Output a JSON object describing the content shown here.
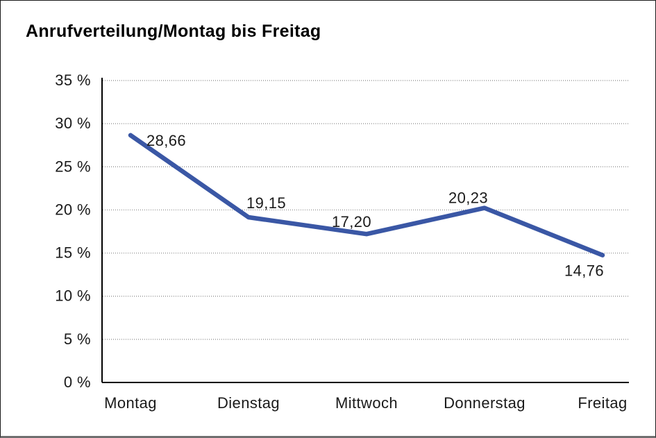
{
  "window": {
    "title": "Anrufverteilung/Montag bis Freitag"
  },
  "chart_data": {
    "type": "line",
    "title": "Anrufverteilung/Montag bis Freitag",
    "categories": [
      "Montag",
      "Dienstag",
      "Mittwoch",
      "Donnerstag",
      "Freitag"
    ],
    "values": [
      28.66,
      19.15,
      17.2,
      20.23,
      14.76
    ],
    "value_labels": [
      "28,66",
      "19,15",
      "17,20",
      "20,23",
      "14,76"
    ],
    "series": [
      {
        "name": "Anrufverteilung",
        "values": [
          28.66,
          19.15,
          17.2,
          20.23,
          14.76
        ]
      }
    ],
    "y_ticks": [
      {
        "value": 0,
        "label": "0 %"
      },
      {
        "value": 5,
        "label": "5 %"
      },
      {
        "value": 10,
        "label": "10 %"
      },
      {
        "value": 15,
        "label": "15 %"
      },
      {
        "value": 20,
        "label": "20 %"
      },
      {
        "value": 25,
        "label": "25 %"
      },
      {
        "value": 30,
        "label": "30 %"
      },
      {
        "value": 35,
        "label": "35 %"
      }
    ],
    "ylim": [
      0,
      35
    ],
    "xlabel": "",
    "ylabel": "",
    "legend": "none",
    "grid": "horizontal-dotted",
    "colors": {
      "line": "#3A57A5",
      "axis": "#000000",
      "gridline": "#888888",
      "text": "#1a1a1a"
    }
  }
}
